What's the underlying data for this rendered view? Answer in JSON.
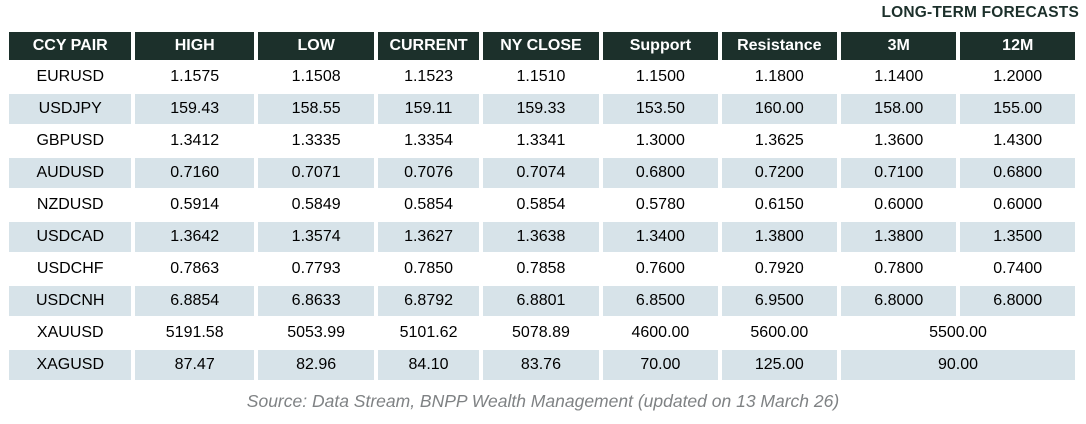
{
  "title": "LONG-TERM FORECASTS",
  "table": {
    "columns": [
      "CCY PAIR",
      "HIGH",
      "LOW",
      "CURRENT",
      "NY CLOSE",
      "Support",
      "Resistance",
      "3M",
      "12M"
    ],
    "rows": [
      {
        "pair": "EURUSD",
        "high": "1.1575",
        "low": "1.1508",
        "current": "1.1523",
        "ny_close": "1.1510",
        "support": "1.1500",
        "resistance": "1.1800",
        "m3": "1.1400",
        "m12": "1.2000"
      },
      {
        "pair": "USDJPY",
        "high": "159.43",
        "low": "158.55",
        "current": "159.11",
        "ny_close": "159.33",
        "support": "153.50",
        "resistance": "160.00",
        "m3": "158.00",
        "m12": "155.00"
      },
      {
        "pair": "GBPUSD",
        "high": "1.3412",
        "low": "1.3335",
        "current": "1.3354",
        "ny_close": "1.3341",
        "support": "1.3000",
        "resistance": "1.3625",
        "m3": "1.3600",
        "m12": "1.4300"
      },
      {
        "pair": "AUDUSD",
        "high": "0.7160",
        "low": "0.7071",
        "current": "0.7076",
        "ny_close": "0.7074",
        "support": "0.6800",
        "resistance": "0.7200",
        "m3": "0.7100",
        "m12": "0.6800"
      },
      {
        "pair": "NZDUSD",
        "high": "0.5914",
        "low": "0.5849",
        "current": "0.5854",
        "ny_close": "0.5854",
        "support": "0.5780",
        "resistance": "0.6150",
        "m3": "0.6000",
        "m12": "0.6000"
      },
      {
        "pair": "USDCAD",
        "high": "1.3642",
        "low": "1.3574",
        "current": "1.3627",
        "ny_close": "1.3638",
        "support": "1.3400",
        "resistance": "1.3800",
        "m3": "1.3800",
        "m12": "1.3500"
      },
      {
        "pair": "USDCHF",
        "high": "0.7863",
        "low": "0.7793",
        "current": "0.7850",
        "ny_close": "0.7858",
        "support": "0.7600",
        "resistance": "0.7920",
        "m3": "0.7800",
        "m12": "0.7400"
      },
      {
        "pair": "USDCNH",
        "high": "6.8854",
        "low": "6.8633",
        "current": "6.8792",
        "ny_close": "6.8801",
        "support": "6.8500",
        "resistance": "6.9500",
        "m3": "6.8000",
        "m12": "6.8000"
      },
      {
        "pair": "XAUUSD",
        "high": "5191.58",
        "low": "5053.99",
        "current": "5101.62",
        "ny_close": "5078.89",
        "support": "4600.00",
        "resistance": "5600.00",
        "merged": true,
        "forecast": "5500.00"
      },
      {
        "pair": "XAGUSD",
        "high": "87.47",
        "low": "82.96",
        "current": "84.10",
        "ny_close": "83.76",
        "support": "70.00",
        "resistance": "125.00",
        "merged": true,
        "forecast": "90.00"
      }
    ]
  },
  "footer": "Source: Data Stream, BNPP Wealth Management (updated on 13 March 26)",
  "colors": {
    "header_bg": "#1c302b",
    "header_text": "#ffffff",
    "alt_row_bg": "#d7e3e9",
    "title_text": "#1c302b",
    "footer_text": "#7f8284"
  },
  "chart_data": {
    "type": "table",
    "title": "LONG-TERM FORECASTS",
    "columns": [
      "CCY PAIR",
      "HIGH",
      "LOW",
      "CURRENT",
      "NY CLOSE",
      "Support",
      "Resistance",
      "3M",
      "12M"
    ],
    "rows": [
      [
        "EURUSD",
        1.1575,
        1.1508,
        1.1523,
        1.151,
        1.15,
        1.18,
        1.14,
        1.2
      ],
      [
        "USDJPY",
        159.43,
        158.55,
        159.11,
        159.33,
        153.5,
        160.0,
        158.0,
        155.0
      ],
      [
        "GBPUSD",
        1.3412,
        1.3335,
        1.3354,
        1.3341,
        1.3,
        1.3625,
        1.36,
        1.43
      ],
      [
        "AUDUSD",
        0.716,
        0.7071,
        0.7076,
        0.7074,
        0.68,
        0.72,
        0.71,
        0.68
      ],
      [
        "NZDUSD",
        0.5914,
        0.5849,
        0.5854,
        0.5854,
        0.578,
        0.615,
        0.6,
        0.6
      ],
      [
        "USDCAD",
        1.3642,
        1.3574,
        1.3627,
        1.3638,
        1.34,
        1.38,
        1.38,
        1.35
      ],
      [
        "USDCHF",
        0.7863,
        0.7793,
        0.785,
        0.7858,
        0.76,
        0.792,
        0.78,
        0.74
      ],
      [
        "USDCNH",
        6.8854,
        6.8633,
        6.8792,
        6.8801,
        6.85,
        6.95,
        6.8,
        6.8
      ],
      [
        "XAUUSD",
        5191.58,
        5053.99,
        5101.62,
        5078.89,
        4600.0,
        5600.0,
        5500.0,
        5500.0
      ],
      [
        "XAGUSD",
        87.47,
        82.96,
        84.1,
        83.76,
        70.0,
        125.0,
        90.0,
        90.0
      ]
    ],
    "notes": "3M and 12M forecast cells are merged into a single spanning cell for XAUUSD (5500.00) and XAGUSD (90.00)",
    "annotations": [
      "Source: Data Stream, BNPP Wealth Management (updated on 13 March 26)"
    ]
  }
}
